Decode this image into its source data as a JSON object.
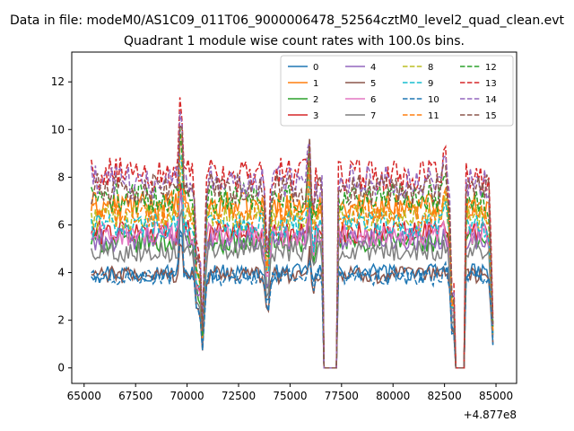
{
  "suptitle": "Data in file: modeM0/AS1C09_011T06_9000006478_52564cztM0_level2_quad_clean.evt",
  "chart_data": {
    "type": "line",
    "title": "Quadrant 1 module wise count rates with 100.0s bins.",
    "xlabel": "",
    "ylabel": "",
    "x_offset_label": "+4.877e8",
    "xlim": [
      64400,
      86000
    ],
    "ylim": [
      -0.65,
      13.25
    ],
    "x_ticks": [
      65000,
      67500,
      70000,
      72500,
      75000,
      77500,
      80000,
      82500,
      85000
    ],
    "x_tick_labels": [
      "65000",
      "67500",
      "70000",
      "72500",
      "75000",
      "77500",
      "80000",
      "82500",
      "85000"
    ],
    "y_ticks": [
      0,
      2,
      4,
      6,
      8,
      10,
      12
    ],
    "y_tick_labels": [
      "0",
      "2",
      "4",
      "6",
      "8",
      "10",
      "12"
    ],
    "legend_position": "upper right",
    "legend_columns": 4,
    "segments": [
      [
        65350,
        76550
      ],
      [
        77300,
        82950
      ],
      [
        83550,
        84850
      ]
    ],
    "dips": [
      [
        70500,
        0.55
      ],
      [
        70750,
        0.2
      ],
      [
        73900,
        0.6
      ],
      [
        76100,
        0.85
      ],
      [
        82900,
        0.3
      ],
      [
        84850,
        0.25
      ]
    ],
    "peaks": [
      [
        69700,
        1.5
      ],
      [
        75950,
        1.3
      ],
      [
        82500,
        1.1
      ]
    ],
    "series": [
      {
        "name": "0",
        "color": "#1f77b4",
        "dash": "solid",
        "level": 4.0
      },
      {
        "name": "1",
        "color": "#ff7f0e",
        "dash": "solid",
        "level": 6.8
      },
      {
        "name": "2",
        "color": "#2ca02c",
        "dash": "solid",
        "level": 5.3
      },
      {
        "name": "3",
        "color": "#d62728",
        "dash": "solid",
        "level": 5.7
      },
      {
        "name": "4",
        "color": "#9467bd",
        "dash": "solid",
        "level": 5.4
      },
      {
        "name": "5",
        "color": "#8c564b",
        "dash": "solid",
        "level": 3.9
      },
      {
        "name": "6",
        "color": "#e377c2",
        "dash": "solid",
        "level": 5.6
      },
      {
        "name": "7",
        "color": "#7f7f7f",
        "dash": "solid",
        "level": 4.9
      },
      {
        "name": "8",
        "color": "#bcbd22",
        "dash": "dashed",
        "level": 6.3
      },
      {
        "name": "9",
        "color": "#17becf",
        "dash": "dashed",
        "level": 6.0
      },
      {
        "name": "10",
        "color": "#1f77b4",
        "dash": "dashed",
        "level": 3.8
      },
      {
        "name": "11",
        "color": "#ff7f0e",
        "dash": "dashed",
        "level": 6.5
      },
      {
        "name": "12",
        "color": "#2ca02c",
        "dash": "dashed",
        "level": 7.1
      },
      {
        "name": "13",
        "color": "#d62728",
        "dash": "dashed",
        "level": 8.1
      },
      {
        "name": "14",
        "color": "#9467bd",
        "dash": "dashed",
        "level": 7.8
      },
      {
        "name": "15",
        "color": "#8c564b",
        "dash": "dashed",
        "level": 7.5
      }
    ]
  }
}
